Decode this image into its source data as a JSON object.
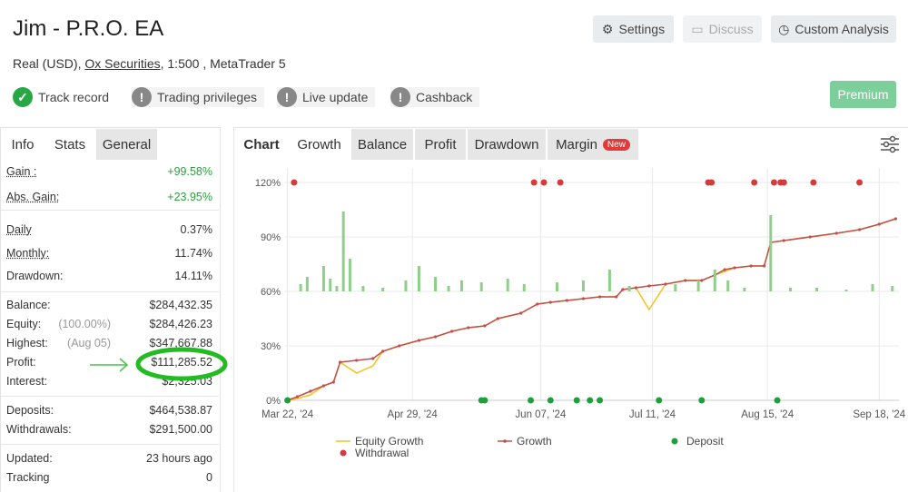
{
  "header": {
    "title": "Jim - P.R.O. EA",
    "subtitle_parts": [
      "Real (USD), ",
      "Ox Securities",
      ", 1:500 , MetaTrader 5"
    ],
    "badges": [
      "Track record",
      "Trading privileges",
      "Live update",
      "Cashback"
    ],
    "buttons": [
      "Settings",
      "Discuss",
      "Custom Analysis"
    ],
    "premium": "Premium"
  },
  "stats": {
    "tabs": [
      "Info",
      "Stats",
      "General"
    ],
    "groups": [
      [
        {
          "label": "Gain :",
          "value": "+99.58%",
          "underline": true,
          "value_color": "#2e9e3e"
        },
        {
          "label": "Abs. Gain:",
          "value": "+23.95%",
          "underline": true,
          "value_color": "#2e9e3e"
        }
      ],
      [
        {
          "label": "Daily",
          "value": "0.37%",
          "underline": true
        },
        {
          "label": "Monthly:",
          "value": "11.74%",
          "underline": true
        },
        {
          "label": "Drawdown:",
          "value": "14.11%"
        }
      ],
      [
        {
          "label": "Balance:",
          "value": "$284,432.35"
        },
        {
          "label": "Equity:",
          "note": "(100.00%)",
          "value": "$284,426.23"
        },
        {
          "label": "Highest:",
          "note": "(Aug 05)",
          "value": "$347,667.88"
        },
        {
          "label": "Profit:",
          "value": "$111,285.52"
        },
        {
          "label": "Interest:",
          "value": "$2,325.03"
        }
      ],
      [
        {
          "label": "Deposits:",
          "value": "$464,538.87"
        },
        {
          "label": "Withdrawals:",
          "value": "$291,500.00"
        }
      ],
      [
        {
          "label": "Updated:",
          "value": "23 hours ago"
        },
        {
          "label": "Tracking",
          "value": "0"
        }
      ]
    ]
  },
  "chart_tabs": {
    "label": "Chart",
    "tabs": [
      "Growth",
      "Balance",
      "Profit",
      "Drawdown",
      "Margin"
    ],
    "badge": "New"
  },
  "chart_data": {
    "type": "line",
    "ylim": [
      0,
      128
    ],
    "yticks": [
      {
        "value": 0,
        "label": "0%"
      },
      {
        "value": 30,
        "label": "30%"
      },
      {
        "value": 60,
        "label": "60%"
      },
      {
        "value": 90,
        "label": "90%"
      },
      {
        "value": 120,
        "label": "120%"
      }
    ],
    "y2lim": [
      -60,
      68
    ],
    "grid": true,
    "xlim": [
      "2024-03-21",
      "2024-09-24"
    ],
    "xticks": [
      {
        "value": "2024-03-22",
        "label": "Mar 22, '24"
      },
      {
        "value": "2024-04-29",
        "label": "Apr 29, '24"
      },
      {
        "value": "2024-06-07",
        "label": "Jun 07, '24"
      },
      {
        "value": "2024-07-11",
        "label": "Jul 11, '24"
      },
      {
        "value": "2024-08-15",
        "label": "Aug 15, '24"
      },
      {
        "value": "2024-09-18",
        "label": "Sep 18, '24"
      }
    ],
    "series": [
      {
        "name": "Equity Growth",
        "color": "#f2c318",
        "mode": "line",
        "x": [
          "2024-03-22",
          "2024-03-25",
          "2024-03-29",
          "2024-04-02",
          "2024-04-05",
          "2024-04-07",
          "2024-04-12",
          "2024-04-17",
          "2024-04-20",
          "2024-04-25",
          "2024-05-01",
          "2024-05-06",
          "2024-05-11",
          "2024-05-16",
          "2024-05-21",
          "2024-05-25",
          "2024-06-01",
          "2024-06-06",
          "2024-06-10",
          "2024-06-15",
          "2024-06-20",
          "2024-06-25",
          "2024-06-30",
          "2024-07-02",
          "2024-07-06",
          "2024-07-10",
          "2024-07-15",
          "2024-07-21",
          "2024-07-26",
          "2024-07-30",
          "2024-08-02",
          "2024-08-05",
          "2024-08-10",
          "2024-08-14",
          "2024-08-16",
          "2024-08-20",
          "2024-08-28",
          "2024-09-05",
          "2024-09-12",
          "2024-09-18",
          "2024-09-23"
        ],
        "values": [
          0,
          1,
          3,
          8,
          10,
          21,
          15,
          19,
          27,
          30,
          33,
          35,
          38,
          40,
          41,
          45,
          48,
          53,
          54,
          55,
          56,
          57,
          57,
          61,
          62,
          50,
          64,
          66,
          66,
          69,
          71,
          73,
          74,
          74,
          87,
          88,
          90,
          92,
          94,
          97,
          100
        ]
      },
      {
        "name": "Growth",
        "color": "#c0504d",
        "mode": "line-markers",
        "x": [
          "2024-03-22",
          "2024-03-25",
          "2024-03-29",
          "2024-04-02",
          "2024-04-05",
          "2024-04-07",
          "2024-04-12",
          "2024-04-17",
          "2024-04-20",
          "2024-04-25",
          "2024-05-01",
          "2024-05-06",
          "2024-05-11",
          "2024-05-16",
          "2024-05-21",
          "2024-05-25",
          "2024-06-01",
          "2024-06-06",
          "2024-06-10",
          "2024-06-15",
          "2024-06-20",
          "2024-06-25",
          "2024-06-30",
          "2024-07-02",
          "2024-07-06",
          "2024-07-10",
          "2024-07-15",
          "2024-07-21",
          "2024-07-26",
          "2024-07-30",
          "2024-08-02",
          "2024-08-05",
          "2024-08-10",
          "2024-08-14",
          "2024-08-16",
          "2024-08-20",
          "2024-08-28",
          "2024-09-05",
          "2024-09-12",
          "2024-09-18",
          "2024-09-23"
        ],
        "values": [
          0,
          2,
          5,
          8,
          10,
          21,
          22,
          23,
          27,
          30,
          33,
          35,
          38,
          40,
          41,
          45,
          48,
          53,
          54,
          55,
          56,
          57,
          57,
          61,
          62,
          63,
          64,
          66,
          66,
          69,
          72,
          73,
          74,
          74,
          87,
          88,
          90,
          92,
          94,
          97,
          100
        ]
      },
      {
        "name": "Deposit",
        "color": "#1e9e3c",
        "mode": "markers",
        "x": [
          "2024-03-22",
          "2024-05-20",
          "2024-05-21",
          "2024-06-04",
          "2024-06-10",
          "2024-06-18",
          "2024-06-22",
          "2024-06-25",
          "2024-07-13",
          "2024-07-26",
          "2024-08-18"
        ],
        "values": [
          0,
          0,
          0,
          0,
          0,
          0,
          0,
          0,
          0,
          0,
          0
        ]
      },
      {
        "name": "Withdrawal",
        "color": "#d63b3b",
        "mode": "markers",
        "x": [
          "2024-03-24",
          "2024-06-05",
          "2024-06-08",
          "2024-06-13",
          "2024-07-28",
          "2024-07-29",
          "2024-08-11",
          "2024-08-17",
          "2024-08-19",
          "2024-08-20",
          "2024-08-29",
          "2024-09-12"
        ],
        "values": [
          120,
          120,
          120,
          120,
          120,
          120,
          120,
          120,
          120,
          120,
          120,
          120
        ]
      },
      {
        "color": "#8fcf8a",
        "mode": "bar",
        "axis": "y2",
        "x": [
          "2024-03-26",
          "2024-03-28",
          "2024-04-02",
          "2024-04-04",
          "2024-04-06",
          "2024-04-08",
          "2024-04-10",
          "2024-04-14",
          "2024-04-20",
          "2024-04-27",
          "2024-05-01",
          "2024-05-06",
          "2024-05-10",
          "2024-05-14",
          "2024-05-20",
          "2024-05-28",
          "2024-06-02",
          "2024-06-12",
          "2024-06-20",
          "2024-06-28",
          "2024-07-04",
          "2024-07-18",
          "2024-07-25",
          "2024-07-30",
          "2024-08-03",
          "2024-08-08",
          "2024-08-16",
          "2024-08-22",
          "2024-08-30",
          "2024-09-08",
          "2024-09-16",
          "2024-09-22"
        ],
        "values": [
          4,
          8,
          14,
          7,
          3,
          44,
          18,
          3,
          2,
          6,
          14,
          8,
          3,
          6,
          5,
          7,
          4,
          5,
          6,
          12,
          3,
          4,
          6,
          12,
          6,
          2,
          42,
          2,
          2,
          1,
          4,
          3
        ]
      }
    ]
  }
}
